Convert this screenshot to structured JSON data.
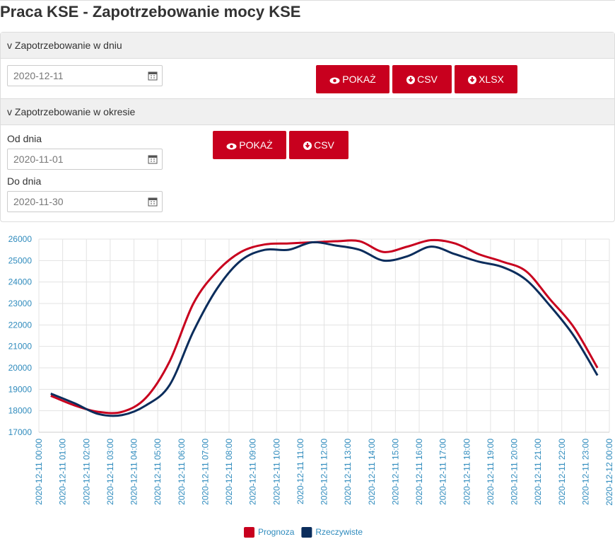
{
  "header": {
    "title": "Praca KSE - Zapotrzebowanie mocy KSE"
  },
  "panel": {
    "day": {
      "heading": "v Zapotrzebowanie w dniu",
      "date": "2020-12-11",
      "buttons": [
        "POKAŻ",
        "CSV",
        "XLSX"
      ]
    },
    "period": {
      "heading": "v Zapotrzebowanie w okresie",
      "from_label": "Od dnia",
      "from": "2020-11-01",
      "to_label": "Do dnia",
      "to": "2020-11-30",
      "buttons": [
        "POKAŻ",
        "CSV"
      ]
    }
  },
  "chart_data": {
    "type": "line",
    "x": [
      "2020-12-11 00:30",
      "2020-12-11 01:30",
      "2020-12-11 02:30",
      "2020-12-11 03:30",
      "2020-12-11 04:30",
      "2020-12-11 05:30",
      "2020-12-11 06:30",
      "2020-12-11 07:30",
      "2020-12-11 08:30",
      "2020-12-11 09:30",
      "2020-12-11 10:30",
      "2020-12-11 11:30",
      "2020-12-11 12:30",
      "2020-12-11 13:30",
      "2020-12-11 14:30",
      "2020-12-11 15:30",
      "2020-12-11 16:30",
      "2020-12-11 17:30",
      "2020-12-11 18:30",
      "2020-12-11 19:30",
      "2020-12-11 20:30",
      "2020-12-11 21:30",
      "2020-12-11 22:30",
      "2020-12-11 23:30"
    ],
    "series": [
      {
        "name": "Prognoza",
        "color": "#c8001e",
        "values": [
          18700,
          18250,
          17950,
          17950,
          18600,
          20300,
          23000,
          24500,
          25400,
          25750,
          25800,
          25850,
          25900,
          25900,
          25400,
          25650,
          25950,
          25800,
          25300,
          24950,
          24500,
          23200,
          21900,
          20000
        ]
      },
      {
        "name": "Rzeczywiste",
        "color": "#0b2d5c",
        "values": [
          18800,
          18350,
          17850,
          17800,
          18250,
          19200,
          21700,
          23700,
          25000,
          25500,
          25500,
          25850,
          25700,
          25500,
          25000,
          25200,
          25650,
          25300,
          24950,
          24700,
          24100,
          22900,
          21500,
          19650
        ]
      }
    ],
    "xlim": [
      "2020-12-11 00:00",
      "2020-12-12 00:00"
    ],
    "xticks": [
      "2020-12-11 00:00",
      "2020-12-11 01:00",
      "2020-12-11 02:00",
      "2020-12-11 03:00",
      "2020-12-11 04:00",
      "2020-12-11 05:00",
      "2020-12-11 06:00",
      "2020-12-11 07:00",
      "2020-12-11 08:00",
      "2020-12-11 09:00",
      "2020-12-11 10:00",
      "2020-12-11 11:00",
      "2020-12-11 12:00",
      "2020-12-11 13:00",
      "2020-12-11 14:00",
      "2020-12-11 15:00",
      "2020-12-11 16:00",
      "2020-12-11 17:00",
      "2020-12-11 18:00",
      "2020-12-11 19:00",
      "2020-12-11 20:00",
      "2020-12-11 21:00",
      "2020-12-11 22:00",
      "2020-12-11 23:00",
      "2020-12-12 00:00"
    ],
    "ylim": [
      17000,
      26000
    ],
    "yticks": [
      17000,
      18000,
      19000,
      20000,
      21000,
      22000,
      23000,
      24000,
      25000,
      26000
    ],
    "grid": true,
    "legend": "bottom"
  }
}
